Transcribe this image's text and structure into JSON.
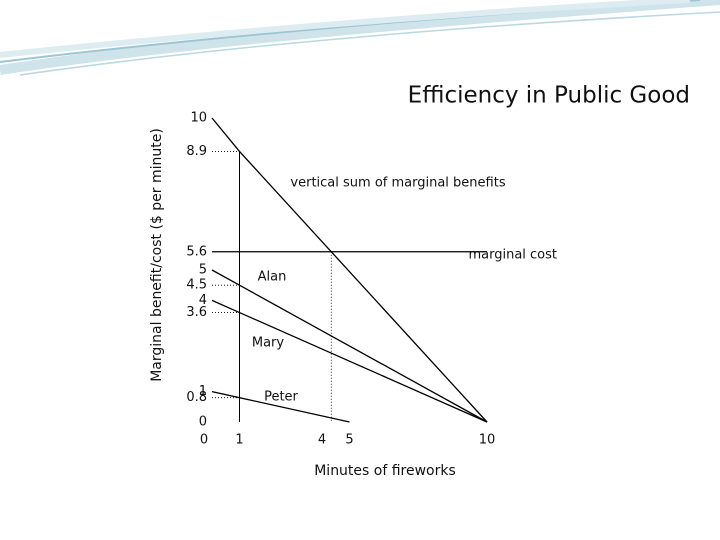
{
  "chart_data": {
    "type": "line",
    "title": "Efficiency in Public Good",
    "x_label": "Minutes of fireworks",
    "y_label": "Marginal benefit/cost ($ per minute)",
    "xlim": [
      0,
      10
    ],
    "ylim": [
      0,
      10
    ],
    "xticks": [
      0,
      1,
      4,
      5,
      10
    ],
    "yticks": [
      10,
      8.9,
      5.6,
      5,
      4.5,
      4,
      3.6,
      1,
      0.8,
      0
    ],
    "series": [
      {
        "name": "vertical sum of marginal benefits",
        "color": "#000000",
        "x": [
          0,
          1,
          10
        ],
        "values": [
          10,
          8.9,
          0
        ]
      },
      {
        "name": "Alan",
        "color": "#000000",
        "x": [
          0,
          1,
          10
        ],
        "values": [
          5,
          4.5,
          0
        ]
      },
      {
        "name": "Mary",
        "color": "#000000",
        "x": [
          0,
          1,
          10
        ],
        "values": [
          4,
          3.6,
          0
        ]
      },
      {
        "name": "Peter",
        "color": "#000000",
        "x": [
          0,
          1,
          5
        ],
        "values": [
          1,
          0.8,
          0
        ]
      },
      {
        "name": "marginal cost",
        "color": "#000000",
        "x": [
          0,
          10
        ],
        "values": [
          5.6,
          5.6
        ]
      }
    ]
  }
}
